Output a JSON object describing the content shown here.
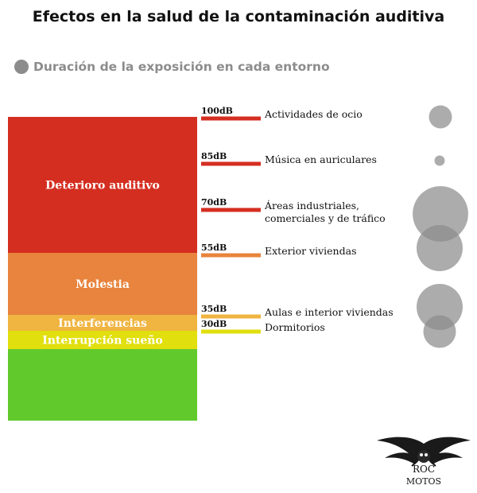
{
  "title": "Efectos en la salud de la contaminación auditiva",
  "legend": {
    "label": "Duración de la exposición en cada entorno",
    "color": "#8c8c8c"
  },
  "logo": {
    "text_top": "ROC",
    "text_bottom": "MOTOS"
  },
  "chart_data": {
    "type": "bar",
    "bands": [
      {
        "label": "Deterioro auditivo",
        "from_db": 55,
        "to_db": 100,
        "color": "#d42e20"
      },
      {
        "label": "Molestia",
        "from_db": 35,
        "to_db": 55,
        "color": "#e8843d"
      },
      {
        "label": "Interferencias",
        "from_db": 30,
        "to_db": 35,
        "color": "#f0b441"
      },
      {
        "label": "Interrupción sueño",
        "from_db": 25,
        "to_db": 30,
        "color": "#e1df0d"
      },
      {
        "label": "",
        "from_db": 0,
        "to_db": 25,
        "color": "#62c92c"
      }
    ],
    "environments": [
      {
        "level": "100dB",
        "db": 100,
        "label": [
          "Actividades de ocio"
        ],
        "color": "#d42e20",
        "duration": 1.0
      },
      {
        "level": "85dB",
        "db": 85,
        "label": [
          "Música en auriculares"
        ],
        "color": "#d42e20",
        "duration": 0.2
      },
      {
        "level": "70dB",
        "db": 70,
        "label": [
          "Áreas industriales,",
          "comerciales y de tráfico"
        ],
        "color": "#d42e20",
        "duration": 5.8
      },
      {
        "level": "55dB",
        "db": 55,
        "label": [
          "Exterior viviendas"
        ],
        "color": "#e8843d",
        "duration": 4.0
      },
      {
        "level": "35dB",
        "db": 35,
        "label": [
          "Aulas e interior viviendas"
        ],
        "color": "#f0b441",
        "duration": 4.0
      },
      {
        "level": "30dB",
        "db": 30,
        "label": [
          "Dormitorios"
        ],
        "color": "#e1df0d",
        "duration": 2.0
      }
    ],
    "bubble_color": "#8c8c8c"
  }
}
